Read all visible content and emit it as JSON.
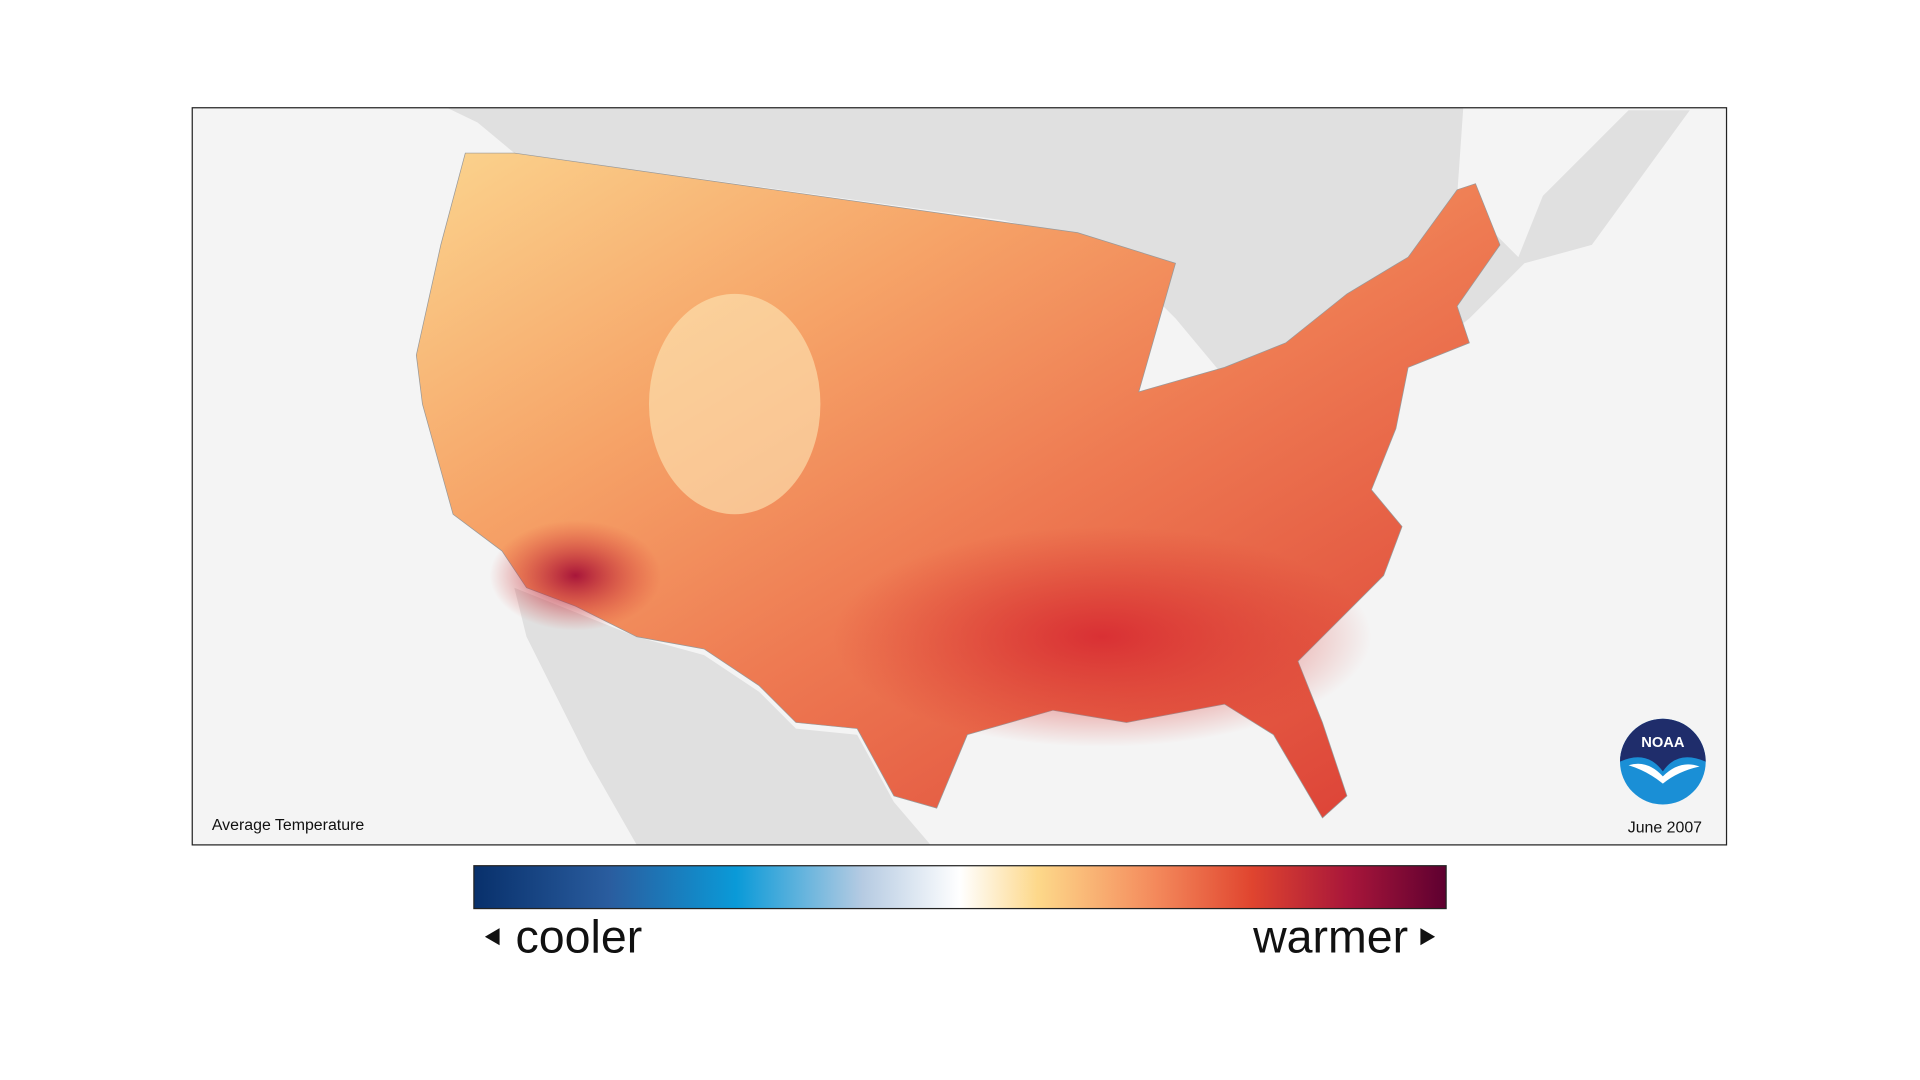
{
  "map": {
    "caption": "Average Temperature",
    "date": "June 2007",
    "logo": "NOAA"
  },
  "legend": {
    "low_label": "cooler",
    "high_label": "warmer"
  }
}
